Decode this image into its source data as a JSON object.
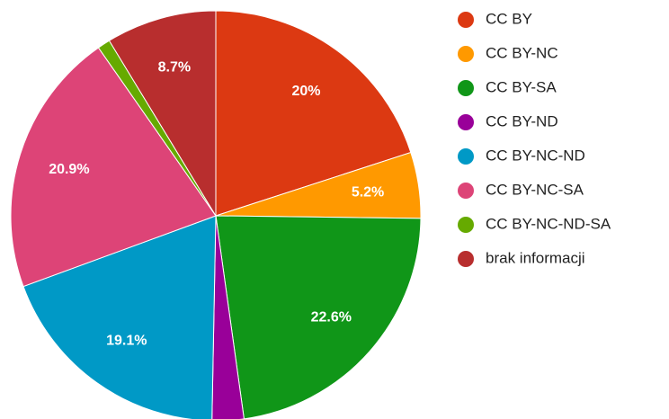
{
  "chart_data": {
    "type": "pie",
    "categories": [
      "CC BY",
      "CC BY-NC",
      "CC BY-SA",
      "CC BY-ND",
      "CC BY-NC-ND",
      "CC BY-NC-SA",
      "CC BY-NC-ND-SA",
      "brak informacji"
    ],
    "values": [
      20,
      5.2,
      22.6,
      2.5,
      19.1,
      20.9,
      1,
      8.7
    ],
    "value_labels": [
      "20%",
      "5.2%",
      "22.6%",
      null,
      "19.1%",
      "20.9%",
      null,
      "8.7%"
    ],
    "colors": [
      "#dc3912",
      "#ff9900",
      "#109618",
      "#990099",
      "#0099c6",
      "#dd4477",
      "#66aa00",
      "#b82e2e"
    ],
    "legend": "right"
  }
}
